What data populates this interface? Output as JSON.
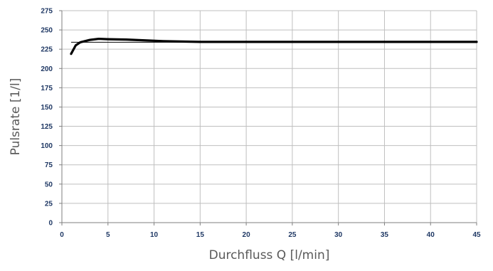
{
  "chart_data": {
    "type": "line",
    "title": "",
    "xlabel": "Durchfluss Q [l/min]",
    "ylabel": "Pulsrate [1/l]",
    "xlim": [
      0,
      45
    ],
    "ylim": [
      0,
      275
    ],
    "x_ticks": [
      0,
      5,
      10,
      15,
      20,
      25,
      30,
      35,
      40,
      45
    ],
    "y_ticks": [
      0,
      25,
      50,
      75,
      100,
      125,
      150,
      175,
      200,
      225,
      250,
      275
    ],
    "grid": true,
    "colors": {
      "line": "#000000",
      "reference": "#000000",
      "grid": "#bfbfbf",
      "tick_text": "#1f3864",
      "axis_title": "#595959"
    },
    "series": [
      {
        "x": [
          1,
          1.5,
          2,
          3,
          4,
          5,
          7,
          9,
          11,
          13,
          15,
          20,
          25,
          30,
          35,
          40,
          45
        ],
        "y": [
          219,
          230,
          234,
          237,
          238.5,
          238,
          237.5,
          236.5,
          235.5,
          235,
          234.5,
          234.5,
          234.5,
          234.5,
          234.5,
          234.5,
          234.5
        ]
      }
    ],
    "reference_line": {
      "y": 234,
      "x_start": 1,
      "x_end": 45
    }
  }
}
